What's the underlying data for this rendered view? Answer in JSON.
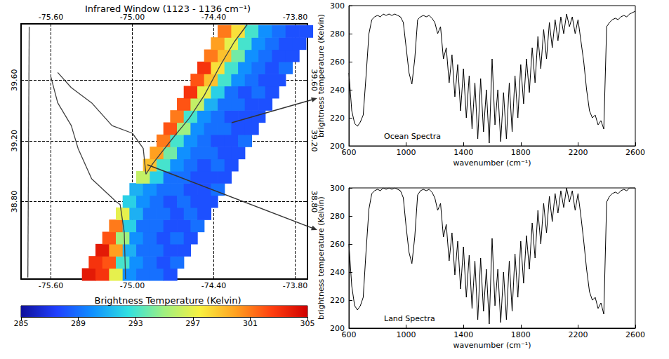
{
  "chart_data": [
    {
      "type": "heatmap",
      "title": "Infrared Window (1123 - 1136 cm⁻¹)",
      "xlim": [
        -75.82,
        -73.71
      ],
      "ylim": [
        38.29,
        39.97
      ],
      "xticks": [
        {
          "value": -75.6,
          "label": "-75.60"
        },
        {
          "value": -75.0,
          "label": "-75.00"
        },
        {
          "value": -74.4,
          "label": "-74.40"
        },
        {
          "value": -73.8,
          "label": "-73.80"
        }
      ],
      "yticks": [
        {
          "value": 38.8,
          "label": "38.80"
        },
        {
          "value": 39.2,
          "label": "39.20"
        },
        {
          "value": 39.6,
          "label": "39.60"
        }
      ],
      "grid": true,
      "cells": [
        [
          -75.32,
          38.32,
          304
        ],
        [
          -75.22,
          38.32,
          303
        ],
        [
          -75.12,
          38.32,
          297
        ],
        [
          -75.02,
          38.32,
          290
        ],
        [
          -74.92,
          38.32,
          289
        ],
        [
          -74.82,
          38.32,
          289
        ],
        [
          -74.72,
          38.32,
          288
        ],
        [
          -75.27,
          38.4,
          303
        ],
        [
          -75.17,
          38.4,
          302
        ],
        [
          -75.07,
          38.4,
          293
        ],
        [
          -74.97,
          38.4,
          290
        ],
        [
          -74.87,
          38.4,
          289
        ],
        [
          -74.77,
          38.4,
          288
        ],
        [
          -74.67,
          38.4,
          289
        ],
        [
          -75.22,
          38.48,
          304
        ],
        [
          -75.12,
          38.48,
          300
        ],
        [
          -75.02,
          38.48,
          291
        ],
        [
          -74.92,
          38.48,
          289
        ],
        [
          -74.82,
          38.48,
          289
        ],
        [
          -74.72,
          38.48,
          288
        ],
        [
          -74.62,
          38.48,
          288
        ],
        [
          -75.17,
          38.56,
          302
        ],
        [
          -75.07,
          38.56,
          295
        ],
        [
          -74.97,
          38.56,
          290
        ],
        [
          -74.87,
          38.56,
          289
        ],
        [
          -74.77,
          38.56,
          288
        ],
        [
          -74.67,
          38.56,
          289
        ],
        [
          -74.57,
          38.56,
          288
        ],
        [
          -75.12,
          38.64,
          301
        ],
        [
          -75.02,
          38.64,
          292
        ],
        [
          -74.92,
          38.64,
          289
        ],
        [
          -74.82,
          38.64,
          289
        ],
        [
          -74.72,
          38.64,
          288
        ],
        [
          -74.62,
          38.64,
          288
        ],
        [
          -74.52,
          38.64,
          289
        ],
        [
          -75.07,
          38.72,
          297
        ],
        [
          -74.97,
          38.72,
          291
        ],
        [
          -74.87,
          38.72,
          289
        ],
        [
          -74.77,
          38.72,
          289
        ],
        [
          -74.67,
          38.72,
          288
        ],
        [
          -74.57,
          38.72,
          289
        ],
        [
          -74.47,
          38.72,
          288
        ],
        [
          -75.02,
          38.8,
          292
        ],
        [
          -74.92,
          38.8,
          290
        ],
        [
          -74.82,
          38.8,
          289
        ],
        [
          -74.72,
          38.8,
          288
        ],
        [
          -74.62,
          38.8,
          289
        ],
        [
          -74.52,
          38.8,
          288
        ],
        [
          -74.42,
          38.8,
          288
        ],
        [
          -74.97,
          38.88,
          291
        ],
        [
          -74.87,
          38.88,
          290
        ],
        [
          -74.77,
          38.88,
          289
        ],
        [
          -74.67,
          38.88,
          289
        ],
        [
          -74.57,
          38.88,
          288
        ],
        [
          -74.47,
          38.88,
          288
        ],
        [
          -74.37,
          38.88,
          289
        ],
        [
          -74.92,
          38.96,
          296
        ],
        [
          -74.82,
          38.96,
          292
        ],
        [
          -74.72,
          38.96,
          289
        ],
        [
          -74.62,
          38.96,
          289
        ],
        [
          -74.52,
          38.96,
          288
        ],
        [
          -74.42,
          38.96,
          288
        ],
        [
          -74.32,
          38.96,
          288
        ],
        [
          -74.87,
          39.04,
          299
        ],
        [
          -74.77,
          39.04,
          293
        ],
        [
          -74.67,
          39.04,
          290
        ],
        [
          -74.57,
          39.04,
          289
        ],
        [
          -74.47,
          39.04,
          288
        ],
        [
          -74.37,
          39.04,
          289
        ],
        [
          -74.27,
          39.04,
          288
        ],
        [
          -74.82,
          39.12,
          300
        ],
        [
          -74.72,
          39.12,
          294
        ],
        [
          -74.62,
          39.12,
          290
        ],
        [
          -74.52,
          39.12,
          289
        ],
        [
          -74.42,
          39.12,
          289
        ],
        [
          -74.32,
          39.12,
          288
        ],
        [
          -74.22,
          39.12,
          288
        ],
        [
          -74.77,
          39.2,
          301
        ],
        [
          -74.67,
          39.2,
          293
        ],
        [
          -74.57,
          39.2,
          290
        ],
        [
          -74.47,
          39.2,
          289
        ],
        [
          -74.37,
          39.2,
          288
        ],
        [
          -74.27,
          39.2,
          288
        ],
        [
          -74.17,
          39.2,
          289
        ],
        [
          -74.72,
          39.28,
          302
        ],
        [
          -74.62,
          39.28,
          295
        ],
        [
          -74.52,
          39.28,
          290
        ],
        [
          -74.42,
          39.28,
          289
        ],
        [
          -74.32,
          39.28,
          289
        ],
        [
          -74.22,
          39.28,
          288
        ],
        [
          -74.12,
          39.28,
          288
        ],
        [
          -74.67,
          39.36,
          301
        ],
        [
          -74.57,
          39.36,
          293
        ],
        [
          -74.47,
          39.36,
          290
        ],
        [
          -74.37,
          39.36,
          289
        ],
        [
          -74.27,
          39.36,
          288
        ],
        [
          -74.17,
          39.36,
          288
        ],
        [
          -74.07,
          39.36,
          288
        ],
        [
          -74.62,
          39.44,
          302
        ],
        [
          -74.52,
          39.44,
          296
        ],
        [
          -74.42,
          39.44,
          291
        ],
        [
          -74.32,
          39.44,
          289
        ],
        [
          -74.22,
          39.44,
          289
        ],
        [
          -74.12,
          39.44,
          288
        ],
        [
          -74.02,
          39.44,
          288
        ],
        [
          -74.57,
          39.52,
          303
        ],
        [
          -74.47,
          39.52,
          297
        ],
        [
          -74.37,
          39.52,
          292
        ],
        [
          -74.27,
          39.52,
          289
        ],
        [
          -74.17,
          39.52,
          288
        ],
        [
          -74.07,
          39.52,
          289
        ],
        [
          -73.97,
          39.52,
          288
        ],
        [
          -74.52,
          39.6,
          302
        ],
        [
          -74.42,
          39.6,
          299
        ],
        [
          -74.32,
          39.6,
          293
        ],
        [
          -74.22,
          39.6,
          290
        ],
        [
          -74.12,
          39.6,
          289
        ],
        [
          -74.02,
          39.6,
          288
        ],
        [
          -73.92,
          39.6,
          288
        ],
        [
          -74.47,
          39.68,
          303
        ],
        [
          -74.37,
          39.68,
          298
        ],
        [
          -74.27,
          39.68,
          293
        ],
        [
          -74.17,
          39.68,
          290
        ],
        [
          -74.07,
          39.68,
          289
        ],
        [
          -73.97,
          39.68,
          288
        ],
        [
          -73.87,
          39.68,
          289
        ],
        [
          -74.42,
          39.76,
          301
        ],
        [
          -74.32,
          39.76,
          299
        ],
        [
          -74.22,
          39.76,
          294
        ],
        [
          -74.12,
          39.76,
          290
        ],
        [
          -74.02,
          39.76,
          289
        ],
        [
          -73.92,
          39.76,
          288
        ],
        [
          -73.82,
          39.76,
          288
        ],
        [
          -74.37,
          39.84,
          300
        ],
        [
          -74.27,
          39.84,
          297
        ],
        [
          -74.17,
          39.84,
          293
        ],
        [
          -74.07,
          39.84,
          290
        ],
        [
          -73.97,
          39.84,
          289
        ],
        [
          -73.87,
          39.84,
          288
        ],
        [
          -73.77,
          39.84,
          288
        ],
        [
          -74.32,
          39.92,
          301
        ],
        [
          -74.22,
          39.92,
          298
        ],
        [
          -74.12,
          39.92,
          293
        ],
        [
          -74.02,
          39.92,
          290
        ],
        [
          -73.92,
          39.92,
          289
        ],
        [
          -73.82,
          39.92,
          288
        ],
        [
          -73.72,
          39.92,
          288
        ]
      ],
      "coastlines": [
        [
          [
            -75.76,
            39.95
          ],
          [
            -75.77,
            38.3
          ]
        ],
        [
          [
            -75.6,
            39.62
          ],
          [
            -75.55,
            39.45
          ],
          [
            -75.45,
            39.3
          ],
          [
            -75.4,
            39.15
          ],
          [
            -75.3,
            38.95
          ],
          [
            -75.12,
            38.8
          ],
          [
            -75.09,
            38.78
          ],
          [
            -75.06,
            38.6
          ],
          [
            -75.05,
            38.29
          ]
        ],
        [
          [
            -75.55,
            39.65
          ],
          [
            -75.45,
            39.55
          ],
          [
            -75.3,
            39.45
          ],
          [
            -75.15,
            39.3
          ],
          [
            -75.0,
            39.25
          ],
          [
            -74.92,
            39.15
          ],
          [
            -74.9,
            38.98
          ],
          [
            -74.85,
            39.05
          ],
          [
            -74.7,
            39.22
          ],
          [
            -74.58,
            39.35
          ],
          [
            -74.47,
            39.5
          ],
          [
            -74.35,
            39.7
          ],
          [
            -74.25,
            39.85
          ],
          [
            -74.15,
            39.97
          ]
        ]
      ],
      "colorbar": {
        "title": "Brightness Temperature (Kelvin)",
        "range": [
          285,
          305
        ],
        "ticks": [
          285,
          289,
          293,
          297,
          301,
          305
        ]
      }
    },
    {
      "type": "line",
      "title": "Ocean Spectra",
      "xlabel": "wavenumber (cm⁻¹)",
      "ylabel": "brightness temperature (Kelvin)",
      "xlim": [
        600,
        2600
      ],
      "ylim": [
        200,
        300
      ],
      "xticks": [
        600,
        1000,
        1400,
        1800,
        2200,
        2600
      ],
      "yticks": [
        200,
        220,
        240,
        260,
        280,
        300
      ],
      "grid": false,
      "color": "#000000",
      "x": [
        600,
        620,
        640,
        660,
        680,
        700,
        720,
        740,
        760,
        780,
        800,
        820,
        840,
        860,
        880,
        900,
        920,
        940,
        960,
        980,
        1000,
        1020,
        1040,
        1060,
        1080,
        1100,
        1120,
        1140,
        1160,
        1180,
        1200,
        1220,
        1240,
        1260,
        1280,
        1300,
        1320,
        1340,
        1360,
        1380,
        1400,
        1420,
        1440,
        1460,
        1480,
        1500,
        1520,
        1540,
        1560,
        1580,
        1600,
        1620,
        1640,
        1660,
        1680,
        1700,
        1720,
        1740,
        1760,
        1780,
        1800,
        1820,
        1840,
        1860,
        1880,
        1900,
        1920,
        1940,
        1960,
        1980,
        2000,
        2020,
        2040,
        2060,
        2080,
        2100,
        2120,
        2140,
        2160,
        2180,
        2200,
        2220,
        2240,
        2260,
        2280,
        2300,
        2320,
        2340,
        2360,
        2380,
        2400,
        2420,
        2440,
        2460,
        2480,
        2500,
        2520,
        2540,
        2560,
        2580,
        2600
      ],
      "values": [
        252,
        225,
        216,
        214,
        217,
        222,
        250,
        280,
        290,
        292,
        293,
        292,
        294,
        293,
        294,
        293,
        294,
        293,
        292,
        288,
        270,
        252,
        244,
        262,
        290,
        292,
        293,
        292,
        293,
        291,
        288,
        280,
        285,
        262,
        270,
        245,
        265,
        235,
        258,
        225,
        255,
        220,
        250,
        212,
        245,
        205,
        248,
        210,
        240,
        202,
        262,
        215,
        240,
        203,
        238,
        205,
        245,
        210,
        250,
        220,
        258,
        230,
        262,
        238,
        270,
        245,
        278,
        255,
        283,
        262,
        288,
        270,
        290,
        275,
        292,
        280,
        294,
        285,
        292,
        280,
        290,
        275,
        260,
        240,
        225,
        220,
        222,
        215,
        218,
        212,
        285,
        288,
        290,
        291,
        290,
        292,
        293,
        292,
        294,
        295,
        296
      ]
    },
    {
      "type": "line",
      "title": "Land Spectra",
      "xlabel": "wavenumber (cm⁻¹)",
      "ylabel": "brightness temperature (Kelvin)",
      "xlim": [
        600,
        2600
      ],
      "ylim": [
        200,
        300
      ],
      "xticks": [
        600,
        1000,
        1400,
        1800,
        2200,
        2600
      ],
      "yticks": [
        200,
        220,
        240,
        260,
        280,
        300
      ],
      "grid": false,
      "color": "#000000",
      "x": [
        600,
        620,
        640,
        660,
        680,
        700,
        720,
        740,
        760,
        780,
        800,
        820,
        840,
        860,
        880,
        900,
        920,
        940,
        960,
        980,
        1000,
        1020,
        1040,
        1060,
        1080,
        1100,
        1120,
        1140,
        1160,
        1180,
        1200,
        1220,
        1240,
        1260,
        1280,
        1300,
        1320,
        1340,
        1360,
        1380,
        1400,
        1420,
        1440,
        1460,
        1480,
        1500,
        1520,
        1540,
        1560,
        1580,
        1600,
        1620,
        1640,
        1660,
        1680,
        1700,
        1720,
        1740,
        1760,
        1780,
        1800,
        1820,
        1840,
        1860,
        1880,
        1900,
        1920,
        1940,
        1960,
        1980,
        2000,
        2020,
        2040,
        2060,
        2080,
        2100,
        2120,
        2140,
        2160,
        2180,
        2200,
        2220,
        2240,
        2260,
        2280,
        2300,
        2320,
        2340,
        2360,
        2380,
        2400,
        2420,
        2440,
        2460,
        2480,
        2500,
        2520,
        2540,
        2560,
        2580,
        2600
      ],
      "values": [
        260,
        230,
        216,
        213,
        216,
        222,
        255,
        285,
        296,
        298,
        299,
        298,
        300,
        299,
        300,
        299,
        300,
        299,
        298,
        293,
        272,
        254,
        246,
        265,
        295,
        298,
        299,
        298,
        299,
        297,
        293,
        284,
        289,
        265,
        274,
        248,
        268,
        238,
        262,
        228,
        258,
        222,
        252,
        214,
        248,
        206,
        250,
        212,
        242,
        203,
        264,
        216,
        242,
        204,
        240,
        206,
        248,
        212,
        253,
        222,
        262,
        232,
        266,
        242,
        275,
        250,
        284,
        260,
        289,
        268,
        294,
        276,
        296,
        282,
        298,
        286,
        300,
        290,
        298,
        284,
        296,
        280,
        262,
        242,
        226,
        220,
        222,
        214,
        218,
        210,
        290,
        294,
        296,
        297,
        296,
        298,
        299,
        298,
        300,
        300,
        300
      ]
    }
  ]
}
